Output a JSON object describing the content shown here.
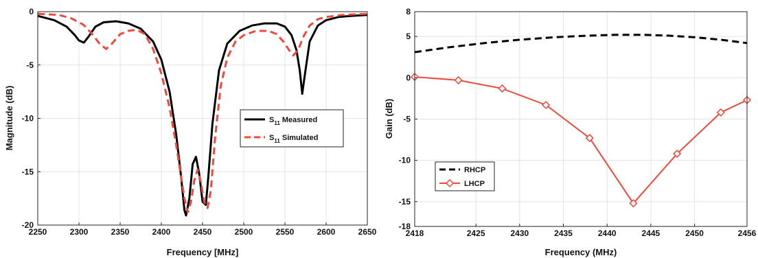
{
  "chart_data": [
    {
      "type": "line",
      "xlabel": "Frequency [MHz]",
      "ylabel": "Magnitude (dB)",
      "xlim": [
        2250,
        2650
      ],
      "ylim": [
        -20,
        0
      ],
      "xticks": [
        2250,
        2300,
        2350,
        2400,
        2450,
        2500,
        2550,
        2600,
        2650
      ],
      "yticks": [
        0,
        -5,
        -10,
        -15,
        -20
      ],
      "grid": true,
      "legend_position": "center-right",
      "series": [
        {
          "name_main": "S",
          "name_sub": "11",
          "name_rest": " Measured",
          "color": "#000000",
          "dash": "solid",
          "x": [
            2250,
            2270,
            2285,
            2295,
            2300,
            2306,
            2312,
            2320,
            2330,
            2345,
            2360,
            2375,
            2390,
            2400,
            2410,
            2418,
            2424,
            2428,
            2430,
            2434,
            2438,
            2442,
            2446,
            2450,
            2454,
            2457,
            2462,
            2470,
            2480,
            2495,
            2510,
            2525,
            2540,
            2550,
            2558,
            2564,
            2568,
            2571,
            2574,
            2580,
            2590,
            2600,
            2615,
            2630,
            2650
          ],
          "y": [
            -0.4,
            -0.8,
            -1.4,
            -2.2,
            -2.7,
            -2.9,
            -2.3,
            -1.4,
            -1.0,
            -0.9,
            -1.1,
            -1.6,
            -2.8,
            -4.5,
            -7.5,
            -11.5,
            -15.5,
            -18.6,
            -19.1,
            -17.5,
            -14.3,
            -13.6,
            -15.2,
            -17.8,
            -18.1,
            -15.5,
            -10.5,
            -5.5,
            -3.0,
            -1.8,
            -1.3,
            -1.1,
            -1.1,
            -1.4,
            -2.2,
            -3.6,
            -5.5,
            -7.7,
            -6.0,
            -2.8,
            -1.3,
            -0.8,
            -0.5,
            -0.4,
            -0.3
          ]
        },
        {
          "name_main": "S",
          "name_sub": "11",
          "name_rest": " Simulated",
          "color": "#ee4a3c",
          "dash": "dashed",
          "x": [
            2250,
            2275,
            2290,
            2305,
            2315,
            2325,
            2333,
            2340,
            2350,
            2360,
            2370,
            2380,
            2390,
            2400,
            2410,
            2418,
            2424,
            2428,
            2432,
            2436,
            2440,
            2444,
            2448,
            2452,
            2456,
            2460,
            2465,
            2472,
            2480,
            2490,
            2500,
            2515,
            2530,
            2540,
            2548,
            2555,
            2560,
            2566,
            2572,
            2580,
            2590,
            2600,
            2620,
            2650
          ],
          "y": [
            -0.2,
            -0.3,
            -0.6,
            -1.2,
            -2.0,
            -3.0,
            -3.5,
            -3.0,
            -2.1,
            -1.8,
            -1.7,
            -2.1,
            -3.5,
            -5.8,
            -9.0,
            -12.5,
            -15.5,
            -17.5,
            -18.8,
            -17.8,
            -15.8,
            -14.8,
            -16.0,
            -17.8,
            -18.4,
            -16.8,
            -12.0,
            -7.0,
            -4.3,
            -2.8,
            -2.2,
            -1.8,
            -1.8,
            -2.1,
            -2.8,
            -3.6,
            -4.1,
            -3.6,
            -2.4,
            -1.3,
            -0.7,
            -0.5,
            -0.3,
            -0.2
          ]
        }
      ]
    },
    {
      "type": "line",
      "xlabel": "Frequency (MHz)",
      "ylabel": "Gain (dB)",
      "xlim": [
        2418,
        2456
      ],
      "ylim": [
        -18,
        8
      ],
      "xticks": [
        2418,
        2425,
        2430,
        2435,
        2440,
        2445,
        2450,
        2456
      ],
      "yticks": [
        8,
        5,
        0,
        -5,
        -10,
        -15,
        -18
      ],
      "grid": true,
      "legend_position": "bottom-left",
      "series": [
        {
          "name": "RHCP",
          "color": "#000000",
          "dash": "dashed",
          "marker": "none",
          "x": [
            2418,
            2422,
            2426,
            2430,
            2434,
            2438,
            2441,
            2444,
            2447,
            2450,
            2453,
            2456
          ],
          "y": [
            3.1,
            3.7,
            4.2,
            4.6,
            4.9,
            5.1,
            5.2,
            5.2,
            5.1,
            4.9,
            4.6,
            4.2
          ]
        },
        {
          "name": "LHCP",
          "color": "#ee4a3c",
          "dash": "solid",
          "marker": "diamond",
          "x": [
            2418,
            2423,
            2428,
            2433,
            2438,
            2443,
            2448,
            2453,
            2456
          ],
          "y": [
            0.1,
            -0.3,
            -1.3,
            -3.3,
            -7.3,
            -15.2,
            -9.2,
            -4.2,
            -2.7
          ]
        }
      ]
    }
  ]
}
